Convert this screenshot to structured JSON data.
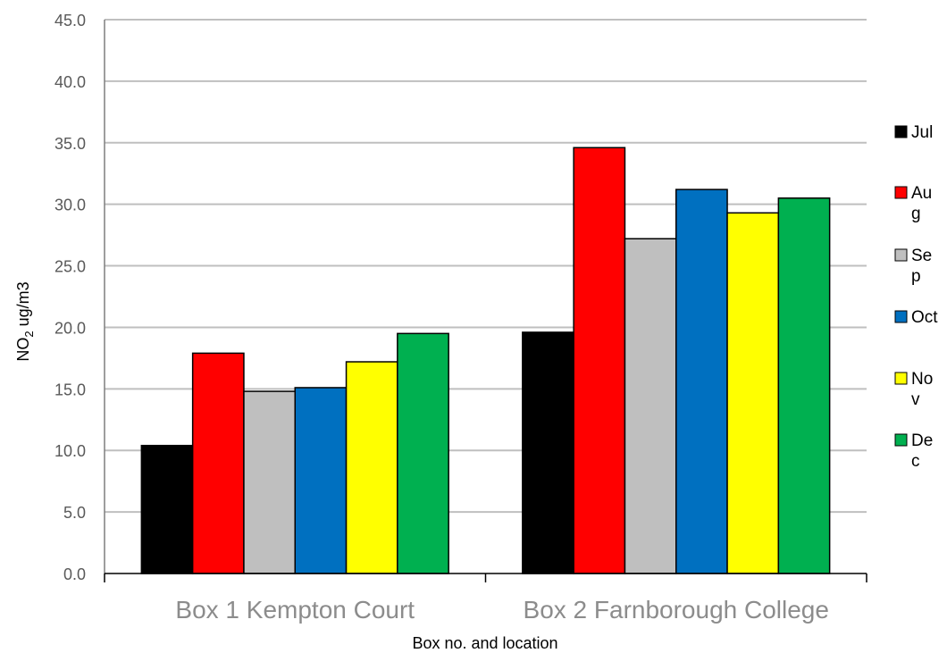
{
  "chart_data": {
    "type": "bar",
    "categories": [
      "Box 1 Kempton Court",
      "Box 2 Farnborough College"
    ],
    "series": [
      {
        "name": "Jul",
        "color": "#000000",
        "values": [
          10.4,
          19.6
        ]
      },
      {
        "name": "Aug",
        "color": "#ff0000",
        "values": [
          17.9,
          34.6
        ]
      },
      {
        "name": "Sep",
        "color": "#bfbfbf",
        "values": [
          14.8,
          27.2
        ]
      },
      {
        "name": "Oct",
        "color": "#0070c0",
        "values": [
          15.1,
          31.2
        ]
      },
      {
        "name": "Nov",
        "color": "#ffff00",
        "values": [
          17.2,
          29.3
        ]
      },
      {
        "name": "Dec",
        "color": "#00b050",
        "values": [
          19.5,
          30.5
        ]
      }
    ],
    "xlabel": "Box no. and location",
    "ylabel_main": "NO",
    "ylabel_sub": "2",
    "ylabel_rest": " ug/m3",
    "ylim": [
      0,
      45
    ],
    "yticks": [
      "0.0",
      "5.0",
      "10.0",
      "15.0",
      "20.0",
      "25.0",
      "30.0",
      "35.0",
      "40.0",
      "45.0"
    ],
    "grid": true,
    "legend_position": "right",
    "legend_lines": [
      [
        "Jul"
      ],
      [
        "Au",
        "g"
      ],
      [
        "Se",
        "p"
      ],
      [
        "Oct"
      ],
      [
        "No",
        "v"
      ],
      [
        "De",
        "c"
      ]
    ]
  }
}
